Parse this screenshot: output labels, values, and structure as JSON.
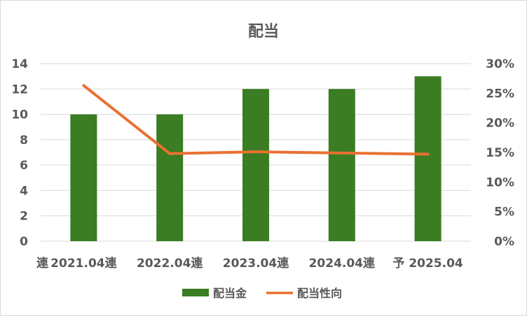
{
  "chart_data": {
    "type": "bar",
    "title": "配当",
    "corner_label": "連",
    "categories": [
      "2021.04連",
      "2022.04連",
      "2023.04連",
      "2024.04連",
      "予 2025.04"
    ],
    "series": [
      {
        "name": "配当金",
        "type": "bar",
        "axis": "left",
        "color": "#3a7d22",
        "values": [
          10,
          10,
          12,
          12,
          13
        ]
      },
      {
        "name": "配当性向",
        "type": "line",
        "axis": "right",
        "color": "#e97132",
        "values": [
          26.3,
          14.8,
          15.1,
          14.9,
          14.7
        ]
      }
    ],
    "y_left": {
      "min": 0,
      "max": 14,
      "step": 2,
      "tick_labels": [
        "0",
        "2",
        "4",
        "6",
        "8",
        "10",
        "12",
        "14"
      ]
    },
    "y_right": {
      "min": 0,
      "max": 30,
      "step": 5,
      "tick_labels": [
        "0%",
        "5%",
        "10%",
        "15%",
        "20%",
        "25%",
        "30%"
      ]
    },
    "grid": true,
    "legend_position": "bottom"
  }
}
